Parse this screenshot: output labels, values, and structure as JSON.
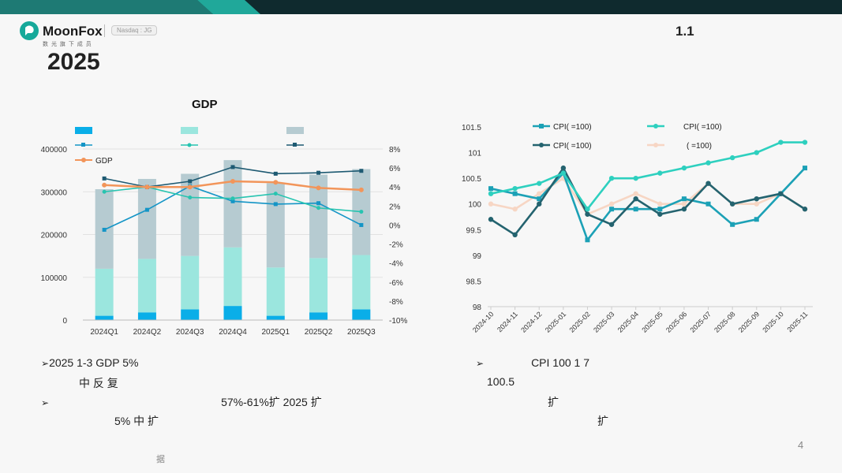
{
  "header": {
    "logo_name": "MoonFox",
    "logo_sub": "数 光 旗 下 成 员",
    "badge": "Nasdaq : JG",
    "year": "2025",
    "right_label": "1.1",
    "page_number": "4",
    "footer_note": "据"
  },
  "colors": {
    "teal_dark": "#0f2a2e",
    "teal_accent": "#20a89a",
    "bar1": "#0aaee8",
    "bar2": "#9be6de",
    "bar3": "#b6cbd1",
    "gdp_line": "#f2955a",
    "line_blue": "#1495c6",
    "line_teal": "#27c4b0",
    "line_navy": "#1e5a72",
    "cpi1": "#1ca1b6",
    "cpi2": "#2ed0bf",
    "cpi3": "#24636f",
    "cpi4": "#f7d6c4"
  },
  "bullets_left": [
    {
      "text": "2025    1-3       GDP                                                5%"
    },
    {
      "text": "中          反                    复"
    },
    {
      "text": "57%-61%扩             2025    扩"
    },
    {
      "text": "5%                                                                    中            扩"
    }
  ],
  "bullets_right": [
    {
      "text": "CPI    100                                1        7"
    },
    {
      "text": "100.5"
    },
    {
      "text": "扩"
    },
    {
      "text": "扩"
    }
  ],
  "chart_data": [
    {
      "type": "bar",
      "title": "GDP",
      "categories": [
        "2024Q1",
        "2024Q2",
        "2024Q3",
        "2024Q4",
        "2025Q1",
        "2025Q2",
        "2025Q3"
      ],
      "series": [
        {
          "name": "",
          "kind": "bar",
          "values": [
            10000,
            18000,
            25000,
            33000,
            10000,
            18000,
            25000
          ]
        },
        {
          "name": "",
          "kind": "bar",
          "values": [
            110000,
            125000,
            125000,
            137000,
            113000,
            127000,
            127000
          ]
        },
        {
          "name": "",
          "kind": "bar",
          "values": [
            186000,
            187000,
            192000,
            204000,
            197000,
            195000,
            201000
          ]
        },
        {
          "name": "",
          "kind": "line",
          "axis": "right",
          "values": [
            -0.5,
            1.6,
            4.1,
            2.5,
            2.2,
            2.3,
            0
          ]
        },
        {
          "name": "",
          "kind": "line",
          "axis": "right",
          "values": [
            3.5,
            4.0,
            2.9,
            2.8,
            3.3,
            1.8,
            1.4
          ]
        },
        {
          "name": "",
          "kind": "line",
          "axis": "right",
          "values": [
            4.9,
            4.0,
            4.6,
            6.1,
            5.4,
            5.5,
            5.7
          ]
        },
        {
          "name": "GDP",
          "kind": "line",
          "axis": "right",
          "values": [
            4.2,
            4.0,
            4.0,
            4.6,
            4.5,
            3.9,
            3.7
          ]
        }
      ],
      "ylim": [
        0,
        400000
      ],
      "yticks": [
        "400000",
        "300000",
        "200000",
        "100000",
        "0"
      ],
      "y2lim": [
        -10,
        8
      ],
      "y2ticks": [
        "8%",
        "6%",
        "4%",
        "2%",
        "0%",
        "-2%",
        "-4%",
        "-6%",
        "-8%",
        "-10%"
      ],
      "grid": true
    },
    {
      "type": "line",
      "categories": [
        "2024-10",
        "2024-11",
        "2024-12",
        "2025-01",
        "2025-02",
        "2025-03",
        "2025-04",
        "2025-05",
        "2025-06",
        "2025-07",
        "2025-08",
        "2025-09",
        "2025-10",
        "2025-11"
      ],
      "series": [
        {
          "name": "CPI(            =100)",
          "marker": "square",
          "values": [
            100.3,
            100.2,
            100.1,
            100.6,
            99.3,
            99.9,
            99.9,
            99.9,
            100.1,
            100.0,
            99.6,
            99.7,
            100.2,
            100.7
          ]
        },
        {
          "name": "CPI(            =100)",
          "marker": "circle",
          "values": [
            100.2,
            100.3,
            100.4,
            100.6,
            99.9,
            100.5,
            100.5,
            100.6,
            100.7,
            100.8,
            100.9,
            101.0,
            101.2,
            101.2
          ]
        },
        {
          "name": "CPI(      =100)",
          "marker": "circle",
          "values": [
            99.7,
            99.4,
            100.0,
            100.7,
            99.8,
            99.6,
            100.1,
            99.8,
            99.9,
            100.4,
            100.0,
            100.1,
            100.2,
            99.9
          ]
        },
        {
          "name": "(       =100)",
          "marker": "circle",
          "values": [
            100.0,
            99.9,
            100.2,
            100.5,
            99.8,
            100.0,
            100.2,
            100.0,
            100.0,
            100.4,
            100.0,
            100.0,
            100.2,
            99.9
          ]
        }
      ],
      "ylim": [
        98,
        101.5
      ],
      "yticks": [
        "101.5",
        "101",
        "100.5",
        "100",
        "99.5",
        "99",
        "98.5",
        "98"
      ],
      "grid": false
    }
  ]
}
